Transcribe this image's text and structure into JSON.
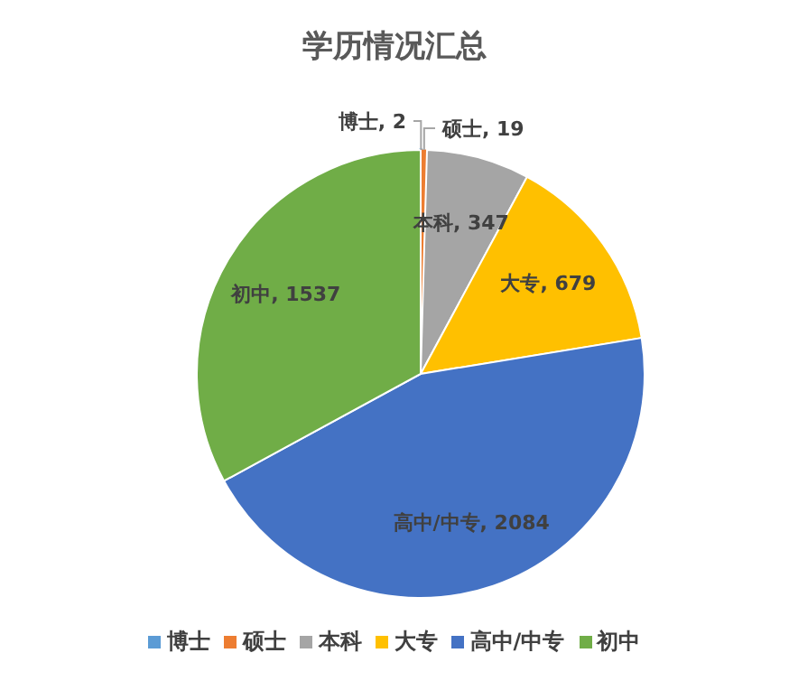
{
  "chart_data": {
    "type": "pie",
    "title": "学历情况汇总",
    "categories": [
      "博士",
      "硕士",
      "本科",
      "大专",
      "高中/中专",
      "初中"
    ],
    "values": [
      2,
      19,
      347,
      679,
      2084,
      1537
    ],
    "colors": [
      "#5b9bd5",
      "#ed7d31",
      "#a5a5a5",
      "#ffc000",
      "#4472c4",
      "#70ad47"
    ],
    "value_labels": [
      "博士, 2",
      "硕士, 19",
      "本科, 347",
      "大专, 679",
      "高中/中专, 2084",
      "初中, 1537"
    ],
    "legend": "bottom"
  }
}
